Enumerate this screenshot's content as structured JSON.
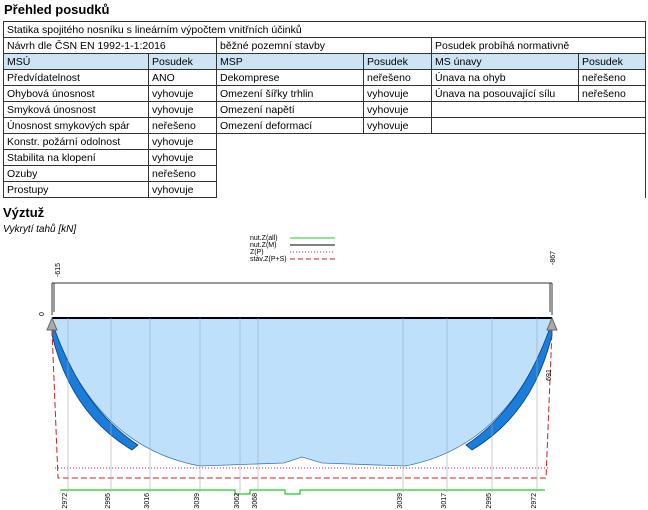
{
  "header": {
    "title": "Přehled posudků"
  },
  "table": {
    "title": "Statika spojitého nosníku s lineárním výpočtem vnitřních účinků",
    "info": [
      "Návrh dle ČSN EN 1992-1-1:2016",
      "běžné pozemní stavby",
      "Posudek probíhá normativně"
    ],
    "columns": [
      "MSÚ",
      "Posudek",
      "MSP",
      "Posudek",
      "MS únavy",
      "Posudek"
    ],
    "rows": [
      [
        "Předvídatelnost",
        "ANO",
        "Dekomprese",
        "neřešeno",
        "Únava na ohyb",
        "neřešeno"
      ],
      [
        "Ohybová únosnost",
        "vyhovuje",
        "Omezení šířky trhlin",
        "vyhovuje",
        "Únava na posouvající sílu",
        "neřešeno"
      ],
      [
        "Smyková únosnost",
        "vyhovuje",
        "Omezení napětí",
        "vyhovuje"
      ],
      [
        "Únosnost smykových spár",
        "neřešeno",
        "Omezení deformací",
        "vyhovuje"
      ],
      [
        "Konstr. požární odolnost",
        "vyhovuje"
      ],
      [
        "Stabilita na klopení",
        "vyhovuje"
      ],
      [
        "Ozuby",
        "neřešeno"
      ],
      [
        "Prostupy",
        "vyhovuje"
      ]
    ]
  },
  "section": {
    "title": "Výztuž",
    "subtitle": "Vykrytí tahů [kN]"
  },
  "diagram": {
    "legend": [
      "nut.Z(all)",
      "nut.Z(M)",
      "Z(P)",
      "stáv.Z(P+S)"
    ],
    "top_labels": [
      -615,
      -867
    ],
    "side_labels": [
      0,
      691
    ],
    "bottom_labels": [
      2972,
      2995,
      3016,
      3039,
      3062,
      3068,
      3039,
      3017,
      2995,
      2972
    ]
  }
}
